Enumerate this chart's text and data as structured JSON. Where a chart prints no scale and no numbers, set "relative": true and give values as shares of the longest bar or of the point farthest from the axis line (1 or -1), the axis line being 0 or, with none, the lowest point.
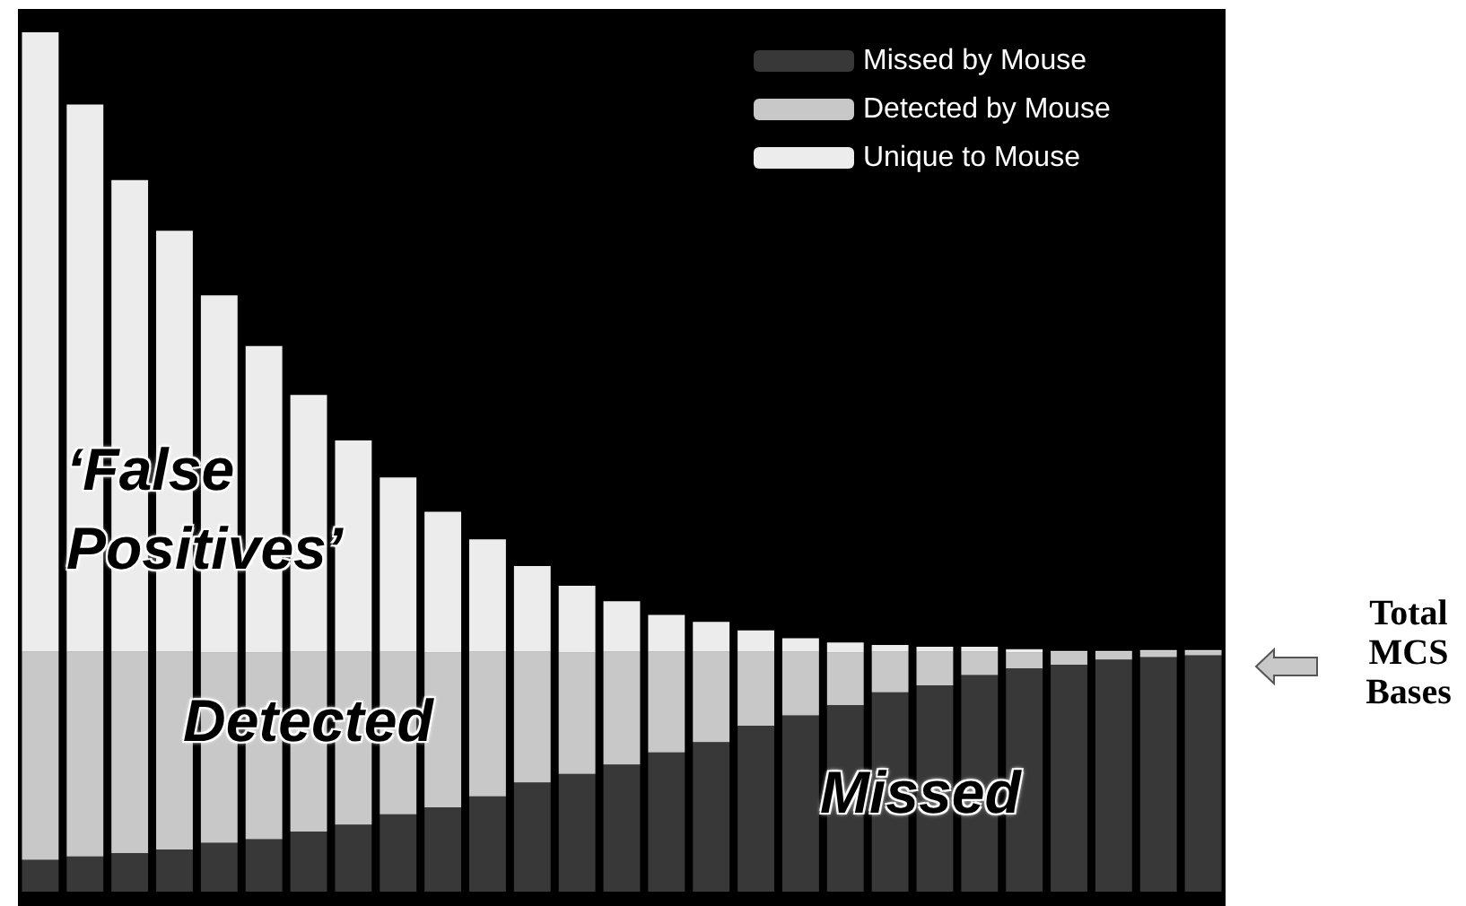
{
  "chart_data": {
    "type": "bar",
    "stacked": true,
    "relative": true,
    "legend": "top right",
    "annotations": [
      "‘False Positives’",
      "Detected",
      "Missed",
      "Total MCS Bases"
    ],
    "categories": [
      null,
      null,
      null,
      null,
      null,
      null,
      null,
      null,
      null,
      null,
      null,
      null,
      null,
      null,
      null,
      null,
      null,
      null,
      null,
      null,
      null,
      null,
      null,
      null,
      null,
      null,
      null
    ],
    "series": [
      {
        "name": "Missed by Mouse",
        "color": "#383838",
        "values": [
          0.037,
          0.041,
          0.045,
          0.049,
          0.057,
          0.061,
          0.07,
          0.078,
          0.09,
          0.098,
          0.111,
          0.127,
          0.137,
          0.148,
          0.162,
          0.174,
          0.193,
          0.205,
          0.217,
          0.232,
          0.24,
          0.252,
          0.26,
          0.264,
          0.27,
          0.273,
          0.275
        ]
      },
      {
        "name": "Detected by Mouse",
        "color": "#c8c8c8",
        "values": [
          0.242,
          0.238,
          0.234,
          0.23,
          0.221,
          0.217,
          0.209,
          0.201,
          0.189,
          0.18,
          0.168,
          0.152,
          0.141,
          0.131,
          0.117,
          0.105,
          0.086,
          0.074,
          0.061,
          0.047,
          0.039,
          0.027,
          0.018,
          0.014,
          0.008,
          0.006,
          0.004
        ]
      },
      {
        "name": "Unique to Mouse",
        "color": "#ececec",
        "values": [
          0.721,
          0.637,
          0.549,
          0.49,
          0.416,
          0.357,
          0.299,
          0.246,
          0.203,
          0.164,
          0.131,
          0.1,
          0.078,
          0.059,
          0.043,
          0.035,
          0.025,
          0.016,
          0.012,
          0.008,
          0.006,
          0.006,
          0.004,
          0.002,
          0.002,
          0.002,
          0.002
        ]
      }
    ]
  }
}
